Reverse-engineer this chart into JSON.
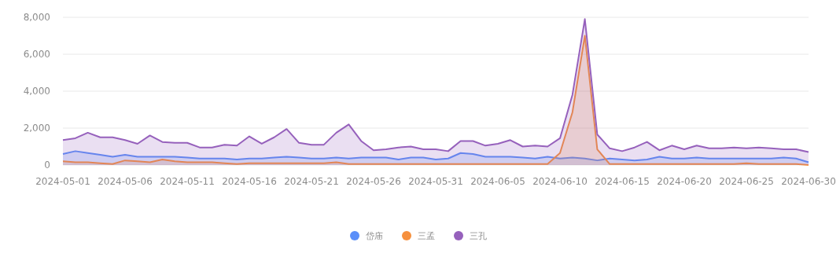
{
  "chart_data": {
    "type": "area",
    "x": [
      "2024-05-01",
      "2024-05-02",
      "2024-05-03",
      "2024-05-04",
      "2024-05-05",
      "2024-05-06",
      "2024-05-07",
      "2024-05-08",
      "2024-05-09",
      "2024-05-10",
      "2024-05-11",
      "2024-05-12",
      "2024-05-13",
      "2024-05-14",
      "2024-05-15",
      "2024-05-16",
      "2024-05-17",
      "2024-05-18",
      "2024-05-19",
      "2024-05-20",
      "2024-05-21",
      "2024-05-22",
      "2024-05-23",
      "2024-05-24",
      "2024-05-25",
      "2024-05-26",
      "2024-05-27",
      "2024-05-28",
      "2024-05-29",
      "2024-05-30",
      "2024-05-31",
      "2024-06-01",
      "2024-06-02",
      "2024-06-03",
      "2024-06-04",
      "2024-06-05",
      "2024-06-06",
      "2024-06-07",
      "2024-06-08",
      "2024-06-09",
      "2024-06-10",
      "2024-06-11",
      "2024-06-12",
      "2024-06-13",
      "2024-06-14",
      "2024-06-15",
      "2024-06-16",
      "2024-06-17",
      "2024-06-18",
      "2024-06-19",
      "2024-06-20",
      "2024-06-21",
      "2024-06-22",
      "2024-06-23",
      "2024-06-24",
      "2024-06-25",
      "2024-06-26",
      "2024-06-27",
      "2024-06-28",
      "2024-06-29",
      "2024-06-30"
    ],
    "series": [
      {
        "name": "岱庙",
        "color": "#5b8ff9",
        "values": [
          600,
          750,
          650,
          550,
          450,
          550,
          450,
          450,
          450,
          450,
          400,
          350,
          350,
          350,
          300,
          350,
          350,
          400,
          450,
          400,
          350,
          350,
          400,
          350,
          400,
          400,
          400,
          300,
          400,
          400,
          300,
          350,
          650,
          600,
          450,
          450,
          450,
          400,
          350,
          450,
          350,
          400,
          350,
          250,
          350,
          300,
          250,
          300,
          450,
          350,
          350,
          400,
          350,
          350,
          350,
          350,
          350,
          350,
          400,
          350,
          150
        ]
      },
      {
        "name": "三孟",
        "color": "#f6903d",
        "values": [
          200,
          150,
          150,
          100,
          50,
          250,
          200,
          150,
          300,
          200,
          150,
          150,
          150,
          100,
          50,
          100,
          100,
          100,
          100,
          100,
          100,
          100,
          150,
          50,
          50,
          50,
          50,
          50,
          50,
          50,
          50,
          50,
          50,
          50,
          50,
          50,
          50,
          50,
          50,
          50,
          650,
          2850,
          7000,
          850,
          50,
          50,
          50,
          50,
          50,
          50,
          50,
          50,
          50,
          50,
          50,
          100,
          50,
          50,
          50,
          50,
          0
        ]
      },
      {
        "name": "三孔",
        "color": "#9661bc",
        "values": [
          1350,
          1450,
          1750,
          1500,
          1500,
          1350,
          1150,
          1600,
          1250,
          1200,
          1200,
          950,
          950,
          1100,
          1050,
          1550,
          1150,
          1500,
          1950,
          1200,
          1100,
          1100,
          1750,
          2200,
          1300,
          800,
          850,
          950,
          1000,
          850,
          850,
          750,
          1300,
          1300,
          1050,
          1150,
          1350,
          1000,
          1050,
          1000,
          1450,
          3800,
          7900,
          1650,
          900,
          750,
          950,
          1250,
          800,
          1050,
          850,
          1050,
          900,
          900,
          950,
          900,
          950,
          900,
          850,
          850,
          700
        ]
      }
    ],
    "xlim": [
      "2024-05-01",
      "2024-06-30"
    ],
    "xticks": [
      "2024-05-01",
      "2024-05-06",
      "2024-05-11",
      "2024-05-16",
      "2024-05-21",
      "2024-05-26",
      "2024-05-31",
      "2024-06-05",
      "2024-06-10",
      "2024-06-15",
      "2024-06-20",
      "2024-06-25",
      "2024-06-30"
    ],
    "ylim": [
      0,
      8000
    ],
    "yticks": [
      0,
      {
        "value": 2000,
        "label": "2,000"
      },
      {
        "value": 4000,
        "label": "4,000"
      },
      {
        "value": 6000,
        "label": "6,000"
      },
      {
        "value": 8000,
        "label": "8,000"
      }
    ],
    "grid": "y",
    "legend": "bottom",
    "marker": "none",
    "line_style": "solid"
  }
}
